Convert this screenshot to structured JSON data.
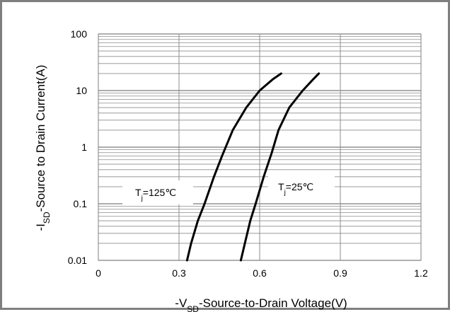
{
  "chart_data": {
    "type": "line",
    "title": "",
    "xlabel": {
      "prefix": "-V",
      "sub": "SD",
      "rest": "-Source-to-Drain Voltage(V)"
    },
    "ylabel": {
      "prefix": "-I",
      "sub": "SD",
      "rest": "-Source to Drain Current(A)"
    },
    "xlim": [
      0,
      1.2
    ],
    "ylim": [
      0.01,
      100
    ],
    "yscale": "log",
    "x_ticks": [
      "0",
      "0.3",
      "0.6",
      "0.9",
      "1.2"
    ],
    "y_ticks": [
      "0.01",
      "0.1",
      "1",
      "10",
      "100"
    ],
    "grid": true,
    "series": [
      {
        "name": {
          "prefix": "T",
          "sub": "j",
          "rest": "=125℃"
        },
        "color": "#000000",
        "points": [
          [
            0.33,
            0.01
          ],
          [
            0.345,
            0.02
          ],
          [
            0.37,
            0.05
          ],
          [
            0.395,
            0.1
          ],
          [
            0.43,
            0.3
          ],
          [
            0.46,
            0.7
          ],
          [
            0.5,
            2
          ],
          [
            0.55,
            5
          ],
          [
            0.6,
            10
          ],
          [
            0.65,
            16
          ],
          [
            0.68,
            20
          ]
        ]
      },
      {
        "name": {
          "prefix": "T",
          "sub": "j",
          "rest": "=25℃"
        },
        "color": "#000000",
        "points": [
          [
            0.53,
            0.01
          ],
          [
            0.545,
            0.02
          ],
          [
            0.565,
            0.05
          ],
          [
            0.585,
            0.1
          ],
          [
            0.615,
            0.3
          ],
          [
            0.645,
            0.8
          ],
          [
            0.67,
            2
          ],
          [
            0.71,
            5
          ],
          [
            0.76,
            10
          ],
          [
            0.8,
            16
          ],
          [
            0.82,
            20
          ]
        ]
      }
    ]
  }
}
